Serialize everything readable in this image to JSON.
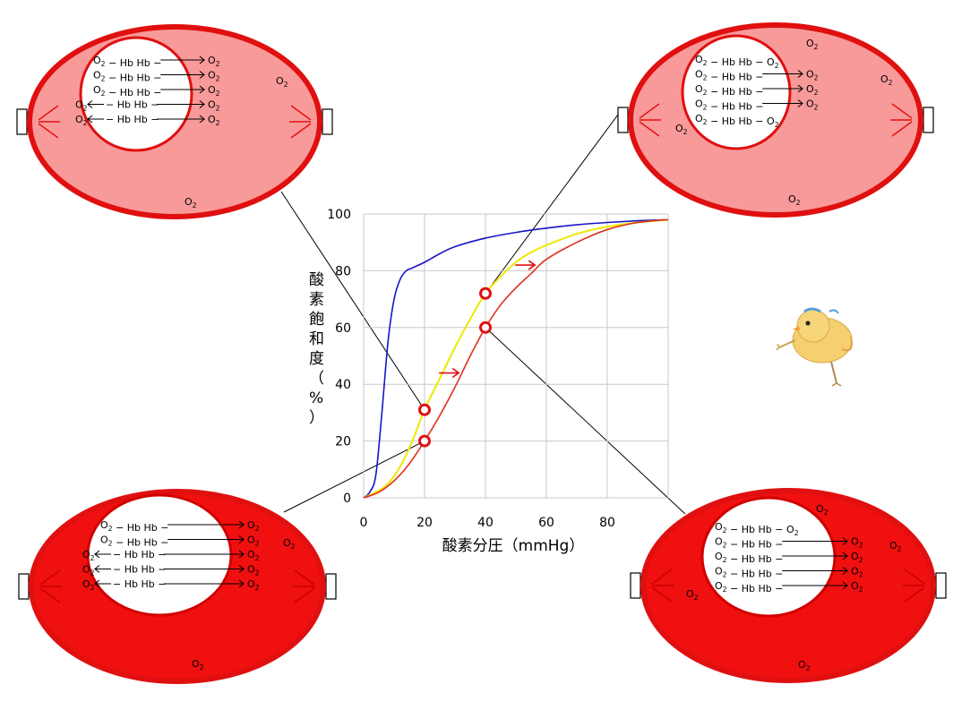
{
  "chart_data": {
    "type": "line",
    "xlabel": "酸素分圧（mmHg）",
    "ylabel": "酸素飽和度（%）",
    "xlim": [
      0,
      100
    ],
    "ylim": [
      0,
      100
    ],
    "x_ticks": [
      "0",
      "20",
      "40",
      "60",
      "80"
    ],
    "y_ticks": [
      "0",
      "20",
      "40",
      "60",
      "80",
      "100"
    ],
    "grid": true,
    "series": [
      {
        "color": "#1515c8",
        "points": [
          [
            0,
            0
          ],
          [
            2,
            2
          ],
          [
            4,
            8
          ],
          [
            6,
            30
          ],
          [
            8,
            55
          ],
          [
            10,
            70
          ],
          [
            12,
            77
          ],
          [
            14,
            80
          ],
          [
            16,
            81
          ],
          [
            20,
            83
          ],
          [
            25,
            86
          ],
          [
            30,
            88.5
          ],
          [
            40,
            91.5
          ],
          [
            50,
            93.5
          ],
          [
            60,
            95
          ],
          [
            70,
            96.2
          ],
          [
            80,
            97
          ],
          [
            90,
            97.6
          ],
          [
            100,
            98
          ]
        ]
      },
      {
        "color": "#f0e800",
        "points": [
          [
            0,
            0
          ],
          [
            4,
            2
          ],
          [
            8,
            5
          ],
          [
            12,
            11
          ],
          [
            16,
            20
          ],
          [
            20,
            31
          ],
          [
            25,
            42
          ],
          [
            30,
            53
          ],
          [
            35,
            63
          ],
          [
            40,
            72
          ],
          [
            45,
            78
          ],
          [
            50,
            83
          ],
          [
            55,
            86.5
          ],
          [
            60,
            89
          ],
          [
            70,
            93
          ],
          [
            80,
            95.5
          ],
          [
            90,
            97
          ],
          [
            100,
            98
          ]
        ]
      },
      {
        "color": "#e0301e",
        "points": [
          [
            0,
            0
          ],
          [
            5,
            2
          ],
          [
            10,
            6
          ],
          [
            15,
            12
          ],
          [
            20,
            20
          ],
          [
            25,
            29
          ],
          [
            30,
            39
          ],
          [
            35,
            50
          ],
          [
            40,
            60
          ],
          [
            45,
            68
          ],
          [
            50,
            74
          ],
          [
            55,
            79
          ],
          [
            60,
            84
          ],
          [
            70,
            90
          ],
          [
            80,
            94.5
          ],
          [
            90,
            97
          ],
          [
            100,
            98
          ]
        ]
      }
    ],
    "markers": [
      {
        "x": 20,
        "y": 31
      },
      {
        "x": 20,
        "y": 20
      },
      {
        "x": 40,
        "y": 72
      },
      {
        "x": 40,
        "y": 60
      }
    ],
    "shift_arrows": [
      {
        "x": 28,
        "y": 44
      },
      {
        "x": 53,
        "y": 82
      }
    ]
  },
  "cells": {
    "top_left": {
      "o2_outside": [
        "O2",
        "O2"
      ],
      "rows": [
        {
          "left": "O2 − Hb Hb −",
          "right": "O2"
        },
        {
          "left": "O2 − Hb Hb −",
          "right": "O2"
        },
        {
          "left": "O2 − Hb Hb −",
          "right": "O2"
        },
        {
          "pre": "O2",
          "left": "− Hb Hb −",
          "right": "O2"
        },
        {
          "pre": "O2",
          "left": "− Hb Hb −",
          "right": "O2"
        }
      ]
    },
    "top_right": {
      "o2_outside": [
        "O2",
        "O2",
        "O2",
        "O2"
      ],
      "rows": [
        {
          "left": "O2 − Hb Hb − O2",
          "right": ""
        },
        {
          "left": "O2 − Hb Hb −",
          "right": "O2"
        },
        {
          "left": "O2 − Hb Hb −",
          "right": "O2"
        },
        {
          "left": "O2 − Hb Hb −",
          "right": "O2"
        },
        {
          "left": "O2 − Hb Hb − O2",
          "right": ""
        }
      ]
    },
    "bottom_left": {
      "o2_outside": [
        "O2",
        "O2"
      ],
      "rows": [
        {
          "left": "O2 − Hb Hb −",
          "right": "O2"
        },
        {
          "left": "O2 − Hb Hb −",
          "right": "O2"
        },
        {
          "pre": "O2",
          "left": "− Hb Hb −",
          "right": "O2"
        },
        {
          "pre": "O2",
          "left": "− Hb Hb −",
          "right": "O2"
        },
        {
          "pre": "O2",
          "left": "− Hb Hb −",
          "right": "O2"
        }
      ]
    },
    "bottom_right": {
      "o2_outside": [
        "O2",
        "O2",
        "O2",
        "O2"
      ],
      "rows": [
        {
          "left": "O2 − Hb Hb − O2",
          "right": ""
        },
        {
          "left": "O2 − Hb Hb −",
          "right": "O2"
        },
        {
          "left": "O2 − Hb Hb −",
          "right": "O2"
        },
        {
          "left": "O2 − Hb Hb −",
          "right": "O2"
        },
        {
          "left": "O2 − Hb Hb −",
          "right": "O2"
        }
      ]
    }
  },
  "colors": {
    "cell_light_fill": "#f99a9a",
    "cell_dark_fill": "#f01010",
    "cell_border": "#e01010",
    "marker": "#e01010",
    "grid": "#c8c8c8"
  },
  "icons": {
    "mascot": "chick-icon"
  }
}
